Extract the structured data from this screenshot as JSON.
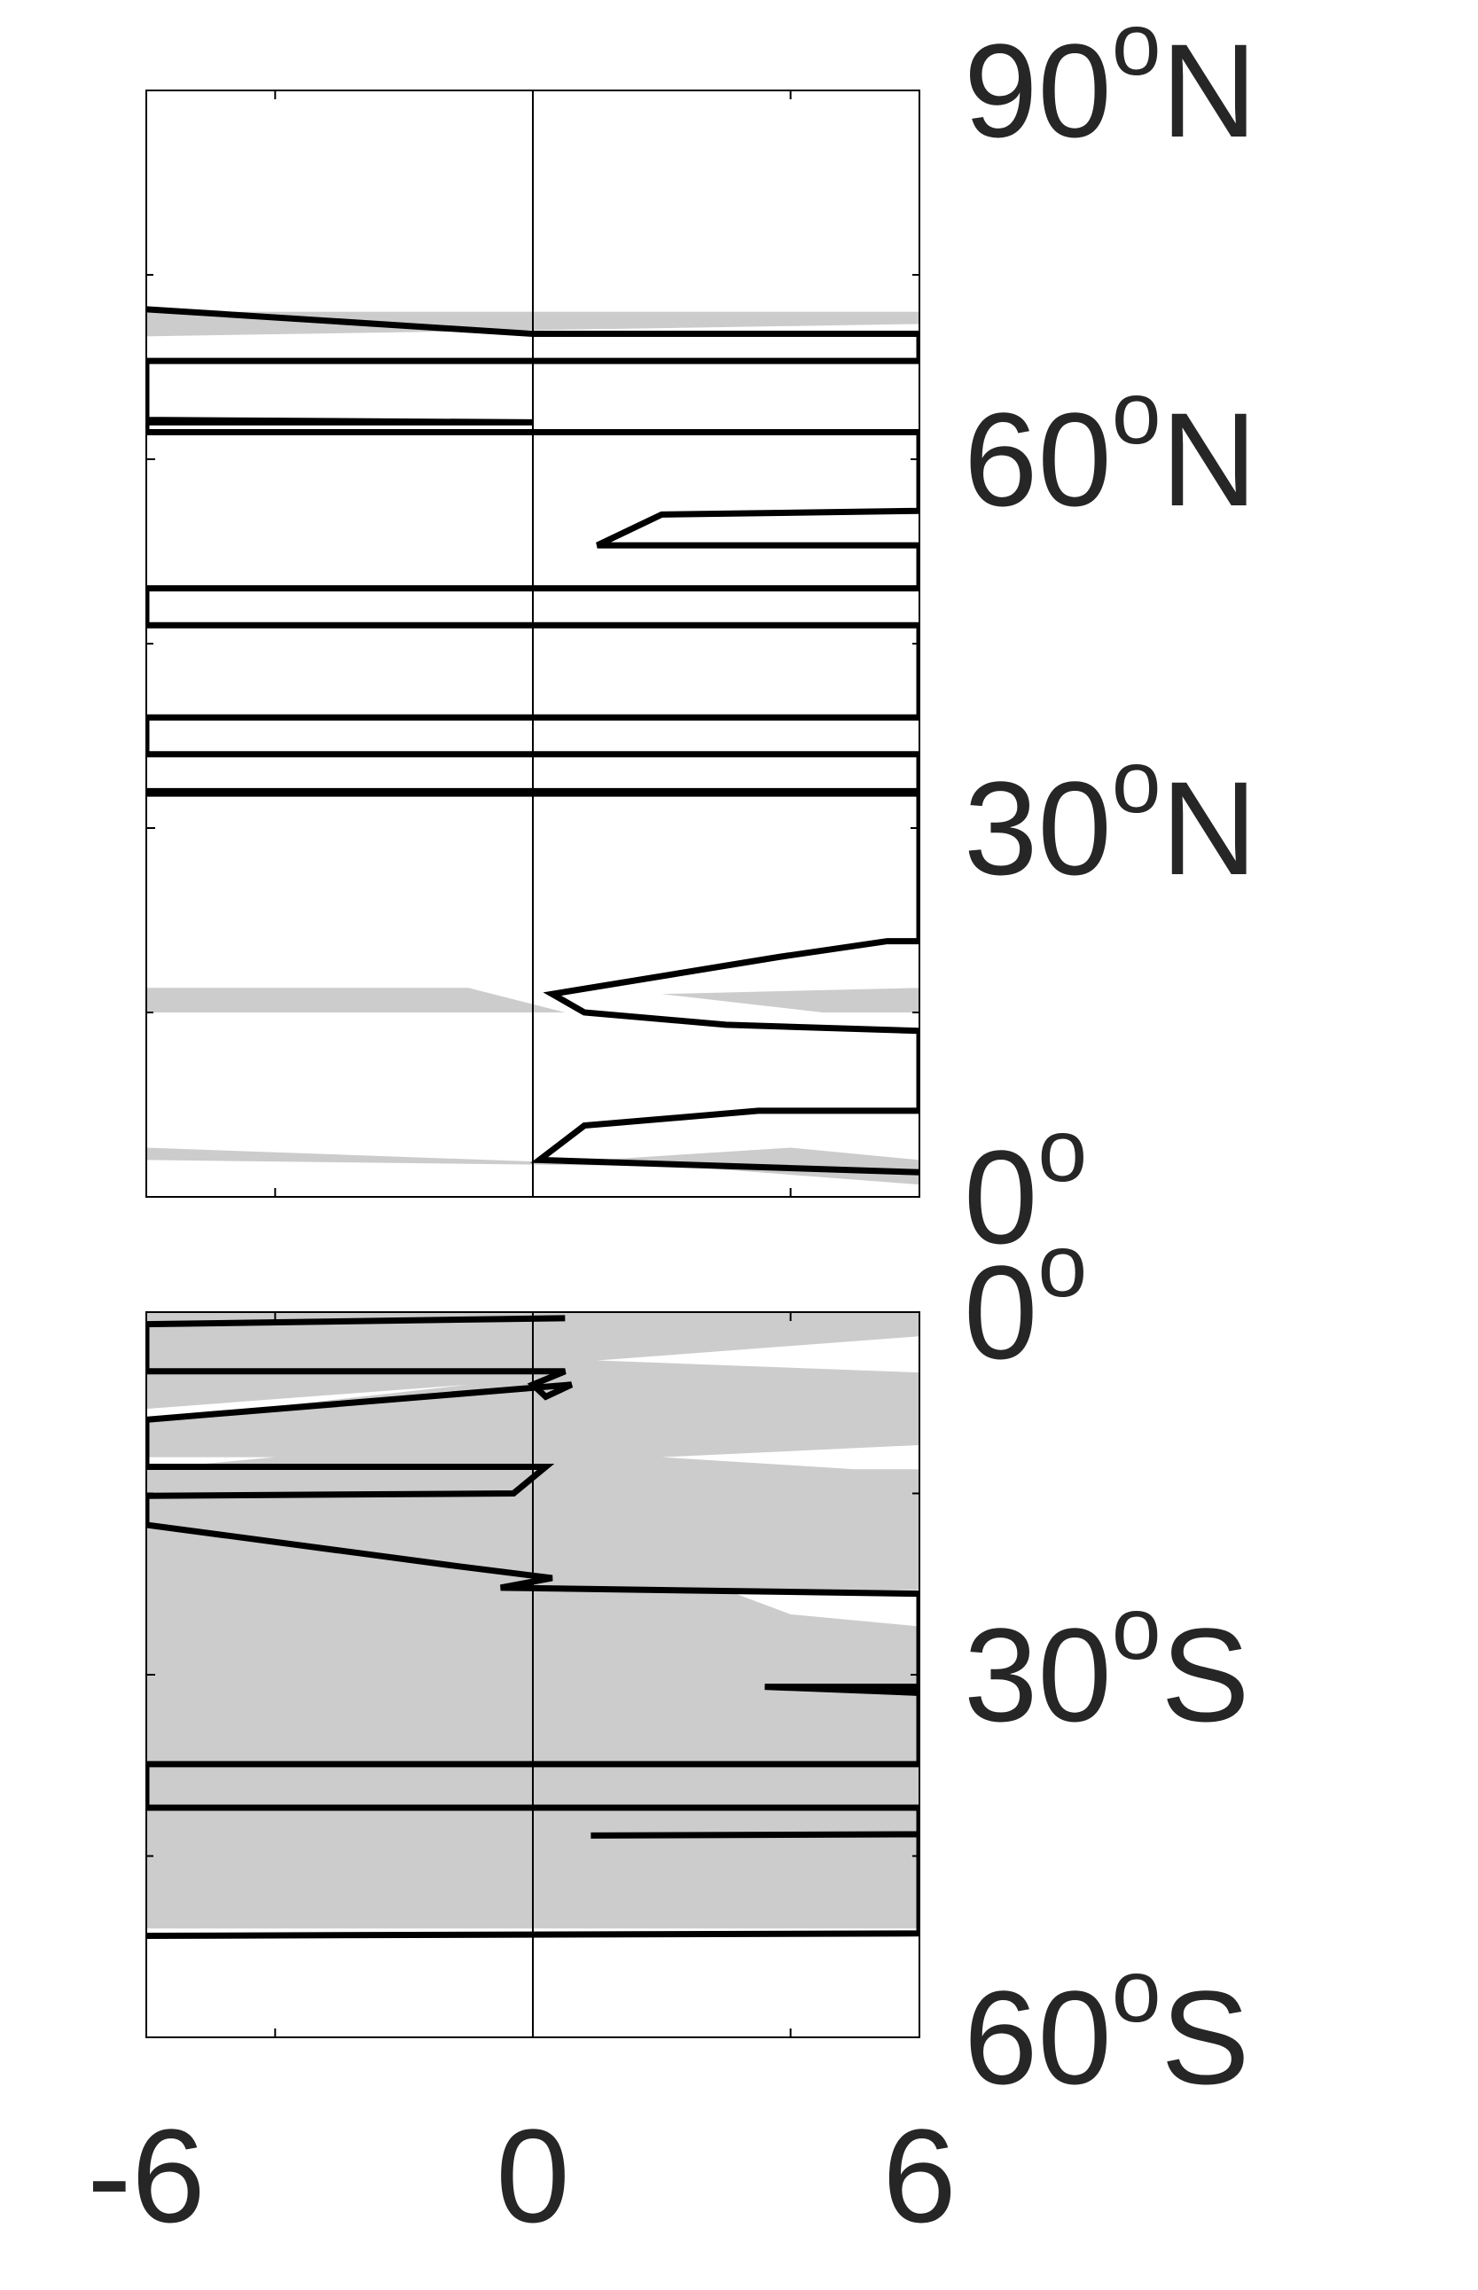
{
  "chart_data": {
    "type": "area",
    "xlim": [
      -6,
      6
    ],
    "x_ticks": [
      "-6",
      "0",
      "6"
    ],
    "grid": false,
    "colors": {
      "band": "#cccccc",
      "line": "#000000",
      "axis": "#000000",
      "text": "#262626"
    },
    "panels": [
      {
        "id": "north",
        "ylim": [
          0,
          90
        ],
        "y_ticks": [
          {
            "value": 90,
            "num": "90",
            "hemi": "N"
          },
          {
            "value": 60,
            "num": "60",
            "hemi": "N"
          },
          {
            "value": 30,
            "num": "30",
            "hemi": "N"
          },
          {
            "value": 0,
            "num": "0",
            "hemi": ""
          }
        ],
        "band": {
          "left": [
            [
              -6,
              70
            ],
            [
              -6,
              1
            ],
            [
              -6,
              3
            ],
            [
              2,
              2.5
            ],
            [
              -6,
              4
            ],
            [
              -6,
              15
            ],
            [
              0.5,
              15
            ],
            [
              -1,
              17
            ],
            [
              -6,
              17
            ],
            [
              -6,
              71
            ],
            [
              -6,
              72
            ]
          ],
          "right": [
            [
              6,
              72
            ],
            [
              6,
              70
            ],
            [
              6,
              1
            ],
            [
              1,
              3
            ],
            [
              4,
              4
            ],
            [
              6,
              3
            ],
            [
              6,
              15
            ],
            [
              4.5,
              15
            ],
            [
              2,
              16.5
            ],
            [
              6,
              17
            ],
            [
              6,
              71
            ]
          ]
        },
        "line": [
          [
            -6,
            72.2
          ],
          [
            0,
            70.2
          ],
          [
            6,
            70.2
          ],
          [
            6,
            68
          ],
          [
            -6,
            68
          ],
          [
            -6,
            63.2
          ],
          [
            0,
            63
          ],
          [
            -6,
            63
          ],
          [
            -6,
            62.2
          ],
          [
            6,
            62.2
          ],
          [
            6,
            55.8
          ],
          [
            2,
            55.5
          ],
          [
            1,
            53
          ],
          [
            6,
            53
          ],
          [
            6,
            49.5
          ],
          [
            -6,
            49.5
          ],
          [
            -6,
            46.5
          ],
          [
            6,
            46.5
          ],
          [
            6,
            39
          ],
          [
            -6,
            39
          ],
          [
            -6,
            36
          ],
          [
            6,
            36
          ],
          [
            6,
            33
          ],
          [
            -6,
            33
          ],
          [
            -6,
            32.8
          ],
          [
            6,
            32.8
          ],
          [
            6,
            20.8
          ],
          [
            5.5,
            20.8
          ],
          [
            3.8,
            19.5
          ],
          [
            0.3,
            16.5
          ],
          [
            0.8,
            15
          ],
          [
            3,
            14
          ],
          [
            6,
            13.5
          ],
          [
            6,
            7
          ],
          [
            3.5,
            7
          ],
          [
            0.8,
            5.8
          ],
          [
            0.1,
            3
          ],
          [
            6,
            2
          ]
        ]
      },
      {
        "id": "south",
        "ylim": [
          0,
          60
        ],
        "y_ticks": [
          {
            "value": 0,
            "num": "0",
            "hemi": ""
          },
          {
            "value": 30,
            "num": "30",
            "hemi": "S"
          },
          {
            "value": 60,
            "num": "60",
            "hemi": "S"
          }
        ],
        "band": {
          "left": [
            [
              -6,
              0
            ],
            [
              -6,
              8
            ],
            [
              -1,
              6
            ],
            [
              -6,
              9
            ],
            [
              -6,
              12
            ],
            [
              -4,
              12
            ],
            [
              -6,
              13
            ],
            [
              -6,
              51
            ]
          ],
          "right": [
            [
              6,
              51
            ],
            [
              6,
              26
            ],
            [
              4,
              25
            ],
            [
              3,
              23
            ],
            [
              6,
              23
            ],
            [
              6,
              13
            ],
            [
              5,
              13
            ],
            [
              2,
              12
            ],
            [
              6,
              11
            ],
            [
              6,
              5
            ],
            [
              1,
              4
            ],
            [
              6,
              2
            ],
            [
              6,
              0
            ]
          ]
        },
        "line": [
          [
            -6,
            1
          ],
          [
            0.5,
            0.5
          ],
          [
            -6,
            1
          ],
          [
            -6,
            4.9
          ],
          [
            0.5,
            4.9
          ],
          [
            0,
            6
          ],
          [
            0.2,
            7
          ],
          [
            0.6,
            6
          ],
          [
            -6,
            8.9
          ],
          [
            -6,
            12.8
          ],
          [
            0.2,
            12.8
          ],
          [
            -0.3,
            15
          ],
          [
            -6,
            15.2
          ],
          [
            -6,
            17.6
          ],
          [
            -1.2,
            21
          ],
          [
            0.3,
            22
          ],
          [
            -0.5,
            22.8
          ],
          [
            6,
            23.3
          ],
          [
            6,
            31
          ],
          [
            3.6,
            31
          ],
          [
            6,
            31.5
          ],
          [
            6,
            37.4
          ],
          [
            -6,
            37.4
          ],
          [
            -6,
            41
          ],
          [
            6,
            41
          ],
          [
            6,
            43.2
          ],
          [
            0.9,
            43.3
          ],
          [
            6,
            43.2
          ],
          [
            6,
            51.4
          ],
          [
            -6,
            51.6
          ]
        ]
      }
    ]
  }
}
